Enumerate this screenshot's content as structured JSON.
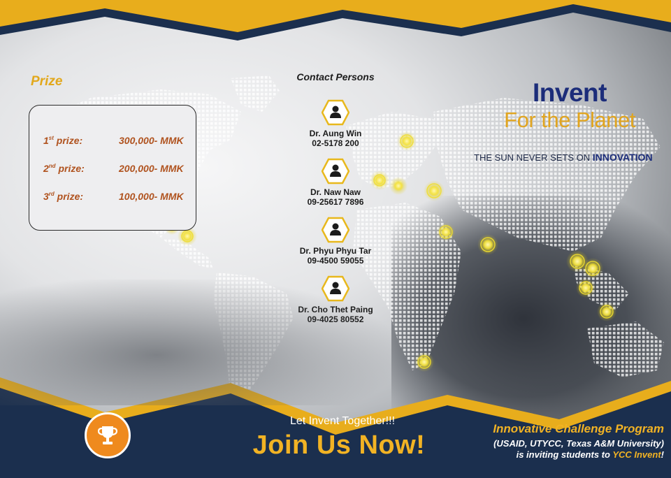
{
  "prize": {
    "heading": "Prize",
    "rows": [
      {
        "place_num": "1",
        "place_sup": "st",
        "place_suffix": " prize:",
        "amount": "300,000- MMK"
      },
      {
        "place_num": "2",
        "place_sup": "nd",
        "place_suffix": " prize:",
        "amount": "200,000- MMK"
      },
      {
        "place_num": "3",
        "place_sup": "rd",
        "place_suffix": " prize:",
        "amount": "100,000- MMK"
      }
    ]
  },
  "contacts": {
    "title": "Contact Persons",
    "people": [
      {
        "name": "Dr. Aung Win",
        "phone": "02-5178 200"
      },
      {
        "name": "Dr. Naw Naw",
        "phone": "09-25617 7896"
      },
      {
        "name": "Dr. Phyu Phyu Tar",
        "phone": "09-4500 59055"
      },
      {
        "name": "Dr. Cho Thet Paing",
        "phone": "09-4025 80552"
      }
    ]
  },
  "logo": {
    "title": "Invent",
    "subtitle": "For the Planet"
  },
  "tagline": {
    "prefix": "THE SUN NEVER SETS ON ",
    "highlight": "INNOVATION"
  },
  "footer": {
    "let_invent": "Let Invent Together!!!",
    "join_now": "Join Us Now!",
    "program_title": "Innovative Challenge Program",
    "program_partners": "(USAID, UTYCC, Texas A&M University)",
    "invite_prefix": "is inviting students to ",
    "invite_highlight": "YCC Invent",
    "invite_suffix": "!"
  },
  "icons": {
    "person": "person-icon",
    "trophy": "trophy-icon"
  },
  "colors": {
    "navy": "#1b2f4e",
    "gold": "#e8ad1c",
    "orange": "#ef8a1e",
    "prize_text": "#b0531f",
    "brand_blue": "#1c2d7a"
  }
}
